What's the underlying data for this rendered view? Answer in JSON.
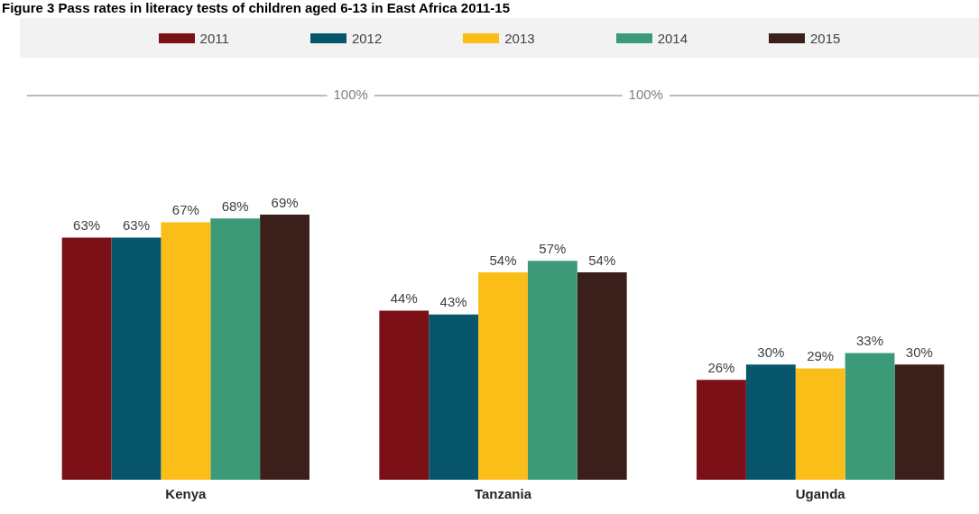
{
  "chart_data": {
    "type": "bar",
    "title": "Figure 3 Pass rates in literacy tests of children aged 6-13 in East Africa 2011-15",
    "categories": [
      "Kenya",
      "Tanzania",
      "Uganda"
    ],
    "series": [
      {
        "name": "2011",
        "color": "#7b1016",
        "values": [
          63,
          44,
          26
        ],
        "value_labels": [
          "63%",
          "44%",
          "26%"
        ]
      },
      {
        "name": "2012",
        "color": "#07566b",
        "values": [
          63,
          43,
          30
        ],
        "value_labels": [
          "63%",
          "43%",
          "30%"
        ]
      },
      {
        "name": "2013",
        "color": "#fbbd18",
        "values": [
          67,
          54,
          29
        ],
        "value_labels": [
          "67%",
          "54%",
          "29%"
        ]
      },
      {
        "name": "2014",
        "color": "#3d9a78",
        "values": [
          68,
          57,
          33
        ],
        "value_labels": [
          "68%",
          "57%",
          "33%"
        ]
      },
      {
        "name": "2015",
        "color": "#3a1f1a",
        "values": [
          69,
          54,
          30
        ],
        "value_labels": [
          "69%",
          "54%",
          "30%"
        ]
      }
    ],
    "tick_labels": "x",
    "grid": false,
    "legend": "top",
    "ref_lines": [
      {
        "axis": "y",
        "value": 100,
        "label": "100%",
        "color": "#a6a6a6"
      }
    ]
  }
}
